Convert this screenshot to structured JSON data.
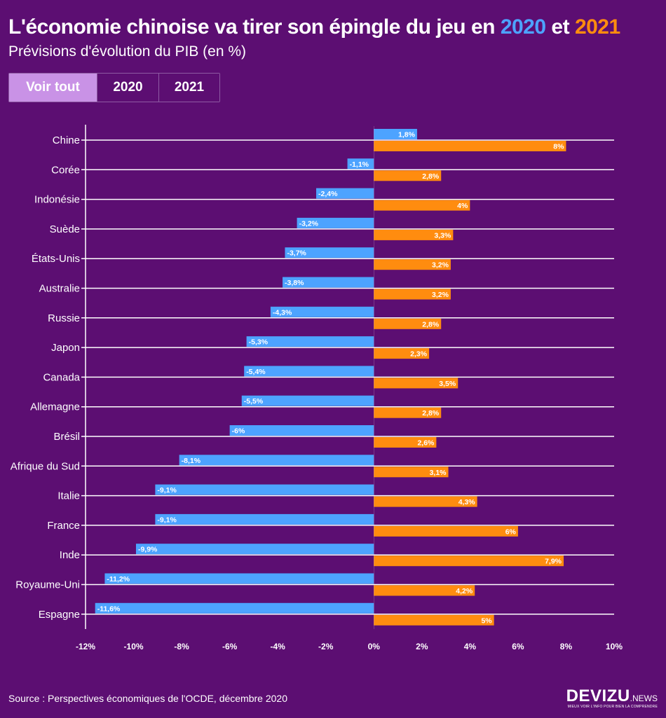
{
  "header": {
    "title_prefix": "L'économie chinoise va tirer son épingle du jeu en",
    "title_2020": "2020",
    "title_mid": "et",
    "title_2021": "2021",
    "subtitle": "Prévisions d'évolution du PIB (en %)"
  },
  "filters": {
    "all_label": "Voir tout",
    "y2020_label": "2020",
    "y2021_label": "2021"
  },
  "colors": {
    "background": "#5c0e72",
    "series_2020": "#4da3ff",
    "series_2021": "#ff8c0f",
    "active_button": "#c992e6"
  },
  "chart_data": {
    "type": "bar",
    "orientation": "horizontal",
    "categories": [
      "Chine",
      "Corée",
      "Indonésie",
      "Suède",
      "États-Unis",
      "Australie",
      "Russie",
      "Japon",
      "Canada",
      "Allemagne",
      "Brésil",
      "Afrique du Sud",
      "Italie",
      "France",
      "Inde",
      "Royaume-Uni",
      "Espagne"
    ],
    "series": [
      {
        "name": "2020",
        "values": [
          1.8,
          -1.1,
          -2.4,
          -3.2,
          -3.7,
          -3.8,
          -4.3,
          -5.3,
          -5.4,
          -5.5,
          -6,
          -8.1,
          -9.1,
          -9.1,
          -9.9,
          -11.2,
          -11.6
        ],
        "labels": [
          "1,8%",
          "-1,1%",
          "-2,4%",
          "-3,2%",
          "-3,7%",
          "-3,8%",
          "-4,3%",
          "-5,3%",
          "-5,4%",
          "-5,5%",
          "-6%",
          "-8,1%",
          "-9,1%",
          "-9,1%",
          "-9,9%",
          "-11,2%",
          "-11,6%"
        ]
      },
      {
        "name": "2021",
        "values": [
          8,
          2.8,
          4,
          3.3,
          3.2,
          3.2,
          2.8,
          2.3,
          3.5,
          2.8,
          2.6,
          3.1,
          4.3,
          6,
          7.9,
          4.2,
          5
        ],
        "labels": [
          "8%",
          "2,8%",
          "4%",
          "3,3%",
          "3,2%",
          "3,2%",
          "2,8%",
          "2,3%",
          "3,5%",
          "2,8%",
          "2,6%",
          "3,1%",
          "4,3%",
          "6%",
          "7,9%",
          "4,2%",
          "5%"
        ]
      }
    ],
    "xlim": [
      -12,
      10
    ],
    "xticks": [
      -12,
      -10,
      -8,
      -6,
      -4,
      -2,
      0,
      2,
      4,
      6,
      8,
      10
    ],
    "xtick_labels": [
      "-12%",
      "-10%",
      "-8%",
      "-6%",
      "-4%",
      "-2%",
      "0%",
      "2%",
      "4%",
      "6%",
      "8%",
      "10%"
    ],
    "gridlines": true
  },
  "footer": {
    "source": "Source : Perspectives économiques de l'OCDE, décembre 2020",
    "logo_main": "DEVIZU",
    "logo_suffix": ".NEWS",
    "logo_tagline": "MIEUX VOIR L'INFO POUR BIEN LA COMPRENDRE"
  }
}
